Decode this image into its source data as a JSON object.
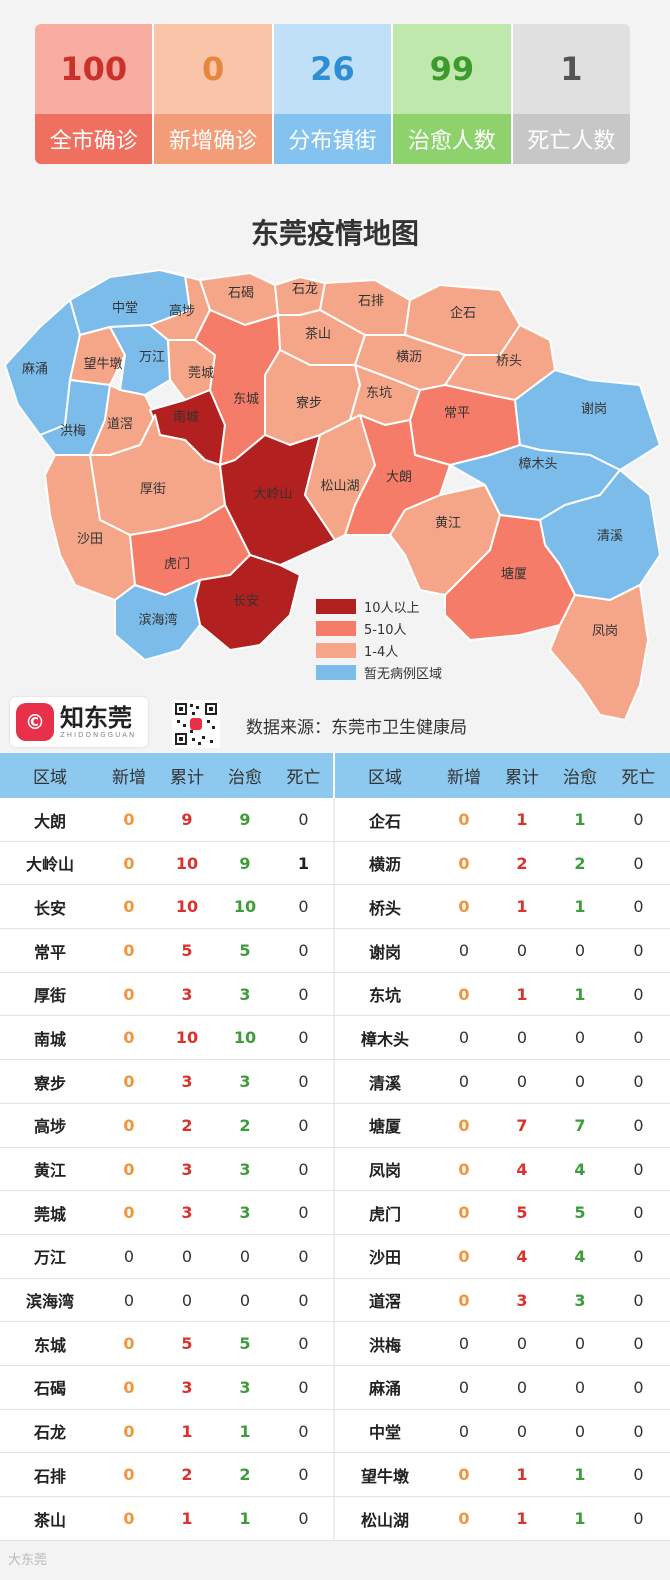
{
  "stats": [
    {
      "value": "100",
      "label": "全市确诊",
      "top_bg": "#f9aca2",
      "bottom_bg": "#f07060",
      "color": "#c9312a"
    },
    {
      "value": "0",
      "label": "新增确诊",
      "top_bg": "#f9c4a8",
      "bottom_bg": "#f39c78",
      "color": "#e5873e"
    },
    {
      "value": "26",
      "label": "分布镇街",
      "top_bg": "#bfe0f7",
      "bottom_bg": "#84c3ef",
      "color": "#2d8ed3"
    },
    {
      "value": "99",
      "label": "治愈人数",
      "top_bg": "#bfe8ad",
      "bottom_bg": "#8ed26e",
      "color": "#3f9a2e"
    },
    {
      "value": "1",
      "label": "死亡人数",
      "top_bg": "#e0e0e0",
      "bottom_bg": "#c7c7c7",
      "color": "#555555"
    }
  ],
  "map": {
    "title": "东莞疫情地图",
    "colors": {
      "high": "#b2201f",
      "mid": "#f47c68",
      "low": "#f6a688",
      "none": "#7cbcea"
    },
    "legend": [
      {
        "label": "10人以上",
        "level": "high"
      },
      {
        "label": "5-10人",
        "level": "mid"
      },
      {
        "label": "1-4人",
        "level": "low"
      },
      {
        "label": "暂无病例区域",
        "level": "none"
      }
    ],
    "regions": [
      {
        "name": "中堂",
        "level": "none"
      },
      {
        "name": "麻涌",
        "level": "none"
      },
      {
        "name": "望牛墩",
        "level": "low"
      },
      {
        "name": "万江",
        "level": "none"
      },
      {
        "name": "洪梅",
        "level": "none"
      },
      {
        "name": "道滘",
        "level": "low"
      },
      {
        "name": "高埗",
        "level": "low"
      },
      {
        "name": "莞城",
        "level": "low"
      },
      {
        "name": "石碣",
        "level": "low"
      },
      {
        "name": "石龙",
        "level": "low"
      },
      {
        "name": "石排",
        "level": "low"
      },
      {
        "name": "企石",
        "level": "low"
      },
      {
        "name": "茶山",
        "level": "low"
      },
      {
        "name": "横沥",
        "level": "low"
      },
      {
        "name": "桥头",
        "level": "low"
      },
      {
        "name": "南城",
        "level": "high"
      },
      {
        "name": "东城",
        "level": "mid"
      },
      {
        "name": "寮步",
        "level": "low"
      },
      {
        "name": "东坑",
        "level": "low"
      },
      {
        "name": "常平",
        "level": "mid"
      },
      {
        "name": "谢岗",
        "level": "none"
      },
      {
        "name": "厚街",
        "level": "low"
      },
      {
        "name": "大岭山",
        "level": "high"
      },
      {
        "name": "松山湖",
        "level": "low"
      },
      {
        "name": "大朗",
        "level": "mid"
      },
      {
        "name": "樟木头",
        "level": "none"
      },
      {
        "name": "沙田",
        "level": "low"
      },
      {
        "name": "黄江",
        "level": "low"
      },
      {
        "name": "清溪",
        "level": "none"
      },
      {
        "name": "虎门",
        "level": "mid"
      },
      {
        "name": "塘厦",
        "level": "mid"
      },
      {
        "name": "长安",
        "level": "high"
      },
      {
        "name": "滨海湾",
        "level": "none"
      },
      {
        "name": "凤岗",
        "level": "low"
      }
    ]
  },
  "brand": {
    "logo_text": "©",
    "name": "知东莞",
    "sub": "ZHIDONGGUAN"
  },
  "source": "数据来源：东莞市卫生健康局",
  "table": {
    "headers": [
      "区域",
      "新增",
      "累计",
      "治愈",
      "死亡"
    ],
    "rows": [
      {
        "left": [
          "大朗",
          "0",
          "9",
          "9",
          "0"
        ],
        "right": [
          "企石",
          "0",
          "1",
          "1",
          "0"
        ]
      },
      {
        "left": [
          "大岭山",
          "0",
          "10",
          "9",
          "1"
        ],
        "right": [
          "横沥",
          "0",
          "2",
          "2",
          "0"
        ]
      },
      {
        "left": [
          "长安",
          "0",
          "10",
          "10",
          "0"
        ],
        "right": [
          "桥头",
          "0",
          "1",
          "1",
          "0"
        ]
      },
      {
        "left": [
          "常平",
          "0",
          "5",
          "5",
          "0"
        ],
        "right": [
          "谢岗",
          "0",
          "0",
          "0",
          "0"
        ]
      },
      {
        "left": [
          "厚街",
          "0",
          "3",
          "3",
          "0"
        ],
        "right": [
          "东坑",
          "0",
          "1",
          "1",
          "0"
        ]
      },
      {
        "left": [
          "南城",
          "0",
          "10",
          "10",
          "0"
        ],
        "right": [
          "樟木头",
          "0",
          "0",
          "0",
          "0"
        ]
      },
      {
        "left": [
          "寮步",
          "0",
          "3",
          "3",
          "0"
        ],
        "right": [
          "清溪",
          "0",
          "0",
          "0",
          "0"
        ]
      },
      {
        "left": [
          "高埗",
          "0",
          "2",
          "2",
          "0"
        ],
        "right": [
          "塘厦",
          "0",
          "7",
          "7",
          "0"
        ]
      },
      {
        "left": [
          "黄江",
          "0",
          "3",
          "3",
          "0"
        ],
        "right": [
          "凤岗",
          "0",
          "4",
          "4",
          "0"
        ]
      },
      {
        "left": [
          "莞城",
          "0",
          "3",
          "3",
          "0"
        ],
        "right": [
          "虎门",
          "0",
          "5",
          "5",
          "0"
        ]
      },
      {
        "left": [
          "万江",
          "0",
          "0",
          "0",
          "0"
        ],
        "right": [
          "沙田",
          "0",
          "4",
          "4",
          "0"
        ]
      },
      {
        "left": [
          "滨海湾",
          "0",
          "0",
          "0",
          "0"
        ],
        "right": [
          "道滘",
          "0",
          "3",
          "3",
          "0"
        ]
      },
      {
        "left": [
          "东城",
          "0",
          "5",
          "5",
          "0"
        ],
        "right": [
          "洪梅",
          "0",
          "0",
          "0",
          "0"
        ]
      },
      {
        "left": [
          "石碣",
          "0",
          "3",
          "3",
          "0"
        ],
        "right": [
          "麻涌",
          "0",
          "0",
          "0",
          "0"
        ]
      },
      {
        "left": [
          "石龙",
          "0",
          "1",
          "1",
          "0"
        ],
        "right": [
          "中堂",
          "0",
          "0",
          "0",
          "0"
        ]
      },
      {
        "left": [
          "石排",
          "0",
          "2",
          "2",
          "0"
        ],
        "right": [
          "望牛墩",
          "0",
          "1",
          "1",
          "0"
        ]
      },
      {
        "left": [
          "茶山",
          "0",
          "1",
          "1",
          "0"
        ],
        "right": [
          "松山湖",
          "0",
          "1",
          "1",
          "0"
        ]
      }
    ]
  },
  "watermark": "大东莞"
}
